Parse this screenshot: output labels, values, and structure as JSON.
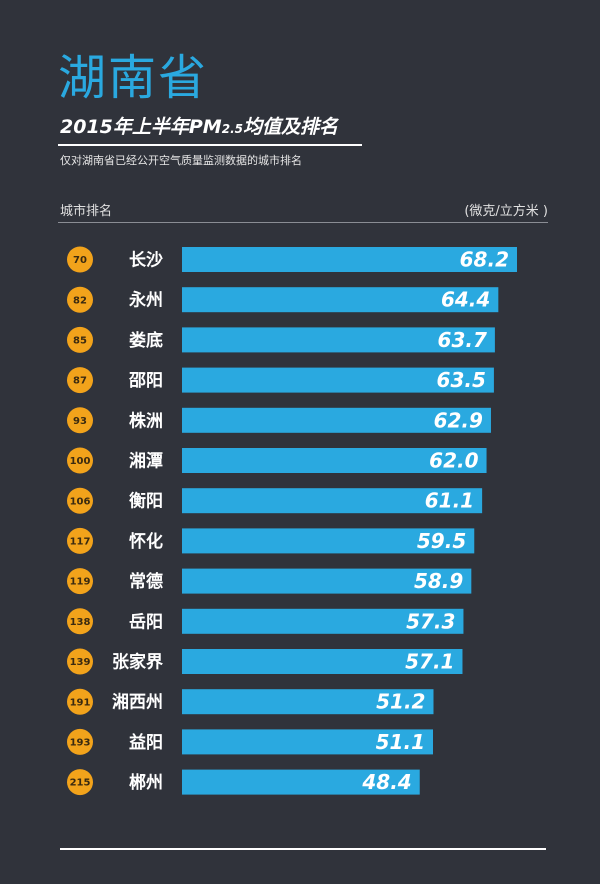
{
  "header": {
    "province": "湖南省",
    "subtitle_main": "2015年上半年PM",
    "subtitle_sub": "2.5",
    "subtitle_end": "均值及排名",
    "note": "仅对湖南省已经公开空气质量监测数据的城市排名",
    "column_left": "城市排名",
    "column_right": "(微克/立方米 )"
  },
  "colors": {
    "background": "#30333b",
    "bar": "#2aa9e0",
    "rank_badge": "#f2a31b",
    "title": "#2aa9e0"
  },
  "chart_data": {
    "type": "bar",
    "orientation": "horizontal",
    "title": "2015年上半年PM2.5均值及排名",
    "unit": "(微克/立方米 )",
    "categories": [
      "长沙",
      "永州",
      "娄底",
      "邵阳",
      "株洲",
      "湘潭",
      "衡阳",
      "怀化",
      "常德",
      "岳阳",
      "张家界",
      "湘西州",
      "益阳",
      "郴州"
    ],
    "ranks": [
      70,
      82,
      85,
      87,
      93,
      100,
      106,
      117,
      119,
      138,
      139,
      191,
      193,
      215
    ],
    "values": [
      68.2,
      64.4,
      63.7,
      63.5,
      62.9,
      62.0,
      61.1,
      59.5,
      58.9,
      57.3,
      57.1,
      51.2,
      51.1,
      48.4
    ],
    "value_labels": [
      "68.2",
      "64.4",
      "63.7",
      "63.5",
      "62.9",
      "62.0",
      "61.1",
      "59.5",
      "58.9",
      "57.3",
      "57.1",
      "51.2",
      "51.1",
      "48.4"
    ],
    "grid": false,
    "legend": "none"
  }
}
